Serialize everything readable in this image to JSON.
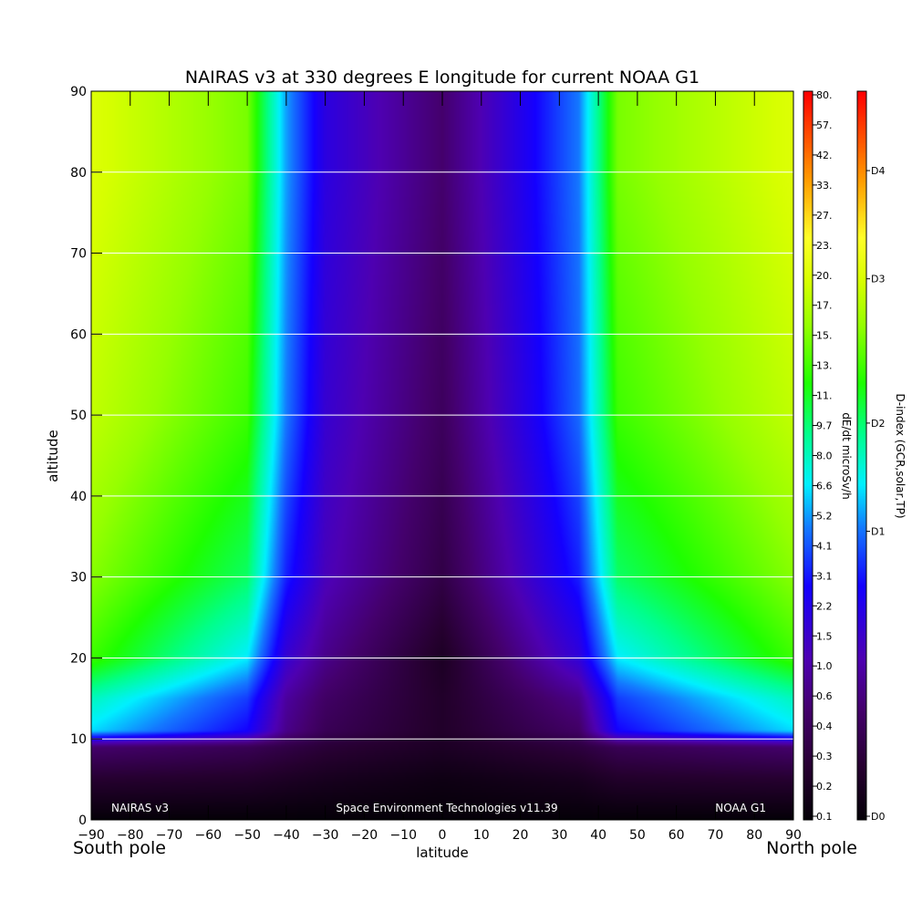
{
  "chart_data": {
    "type": "heatmap",
    "title": "NAIRAS v3 at 330 degrees E longitude for current NOAA G1",
    "xlabel": "latitude",
    "ylabel": "altitude",
    "xlim": [
      -90,
      90
    ],
    "ylim": [
      0,
      90
    ],
    "x_ticks": [
      "-90",
      "-80",
      "-70",
      "-60",
      "-50",
      "-40",
      "-30",
      "-20",
      "-10",
      "0",
      "10",
      "20",
      "30",
      "40",
      "50",
      "60",
      "70",
      "80",
      "90"
    ],
    "y_ticks": [
      "0",
      "10",
      "20",
      "30",
      "40",
      "50",
      "60",
      "70",
      "80",
      "90"
    ],
    "x_end_labels": {
      "left": "South pole",
      "right": "North pole"
    },
    "gridlines_y": [
      10,
      20,
      30,
      40,
      50,
      60,
      70,
      80
    ],
    "annotations": {
      "left": "NAIRAS v3",
      "center": "Space Environment Technologies v11.39",
      "right": "NOAA G1"
    },
    "colorbar_dose": {
      "label": "dE/dt microSv/h",
      "ticks": [
        "0.1",
        "0.2",
        "0.3",
        "0.4",
        "0.6",
        "1.0",
        "1.5",
        "2.2",
        "3.1",
        "4.1",
        "5.2",
        "6.6",
        "8.0",
        "9.7",
        "11.",
        "13.",
        "15.",
        "17.",
        "20.",
        "23.",
        "27.",
        "33.",
        "42.",
        "57.",
        "80."
      ]
    },
    "colorbar_dindex": {
      "label": "D-index (GCR,solar,TP)",
      "ticks": [
        "D0",
        "D1",
        "D2",
        "D3",
        "D4"
      ],
      "tick_fractions": [
        0.0,
        0.395,
        0.545,
        0.745,
        0.895
      ]
    },
    "field_description": {
      "latitudes": [
        -90,
        -70,
        -62,
        -50,
        -40,
        -30,
        -20,
        0,
        20,
        33,
        38,
        45,
        55,
        65,
        90
      ],
      "sample_altitudes": [
        0,
        5,
        9,
        11,
        15,
        20,
        30,
        50,
        80
      ],
      "levels_at_sample_altitudes": {
        "-90": [
          0.0,
          0.07,
          0.15,
          0.45,
          0.5,
          0.62,
          0.67,
          0.72,
          0.75
        ],
        "-50": [
          0.0,
          0.06,
          0.12,
          0.32,
          0.36,
          0.46,
          0.55,
          0.62,
          0.66
        ],
        "-40": [
          0.0,
          0.05,
          0.1,
          0.18,
          0.2,
          0.26,
          0.34,
          0.4,
          0.42
        ],
        "-30": [
          0.0,
          0.04,
          0.08,
          0.12,
          0.14,
          0.18,
          0.23,
          0.26,
          0.28
        ],
        "0": [
          0.0,
          0.02,
          0.05,
          0.06,
          0.06,
          0.05,
          0.1,
          0.13,
          0.15
        ],
        "35": [
          0.0,
          0.04,
          0.09,
          0.14,
          0.18,
          0.27,
          0.34,
          0.39,
          0.4
        ],
        "45": [
          0.0,
          0.06,
          0.12,
          0.32,
          0.36,
          0.46,
          0.55,
          0.62,
          0.66
        ],
        "90": [
          0.0,
          0.07,
          0.15,
          0.45,
          0.5,
          0.62,
          0.67,
          0.72,
          0.75
        ]
      }
    }
  }
}
